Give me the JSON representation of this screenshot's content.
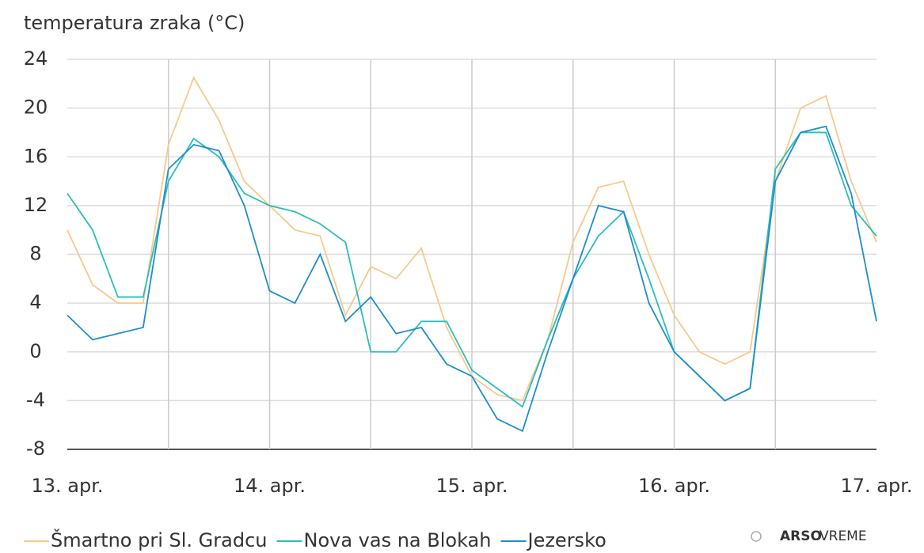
{
  "chart_data": {
    "type": "line",
    "title": "temperatura zraka (°C)",
    "categories": [
      "13. apr.",
      null,
      null,
      null,
      null,
      null,
      null,
      null,
      "14. apr.",
      null,
      null,
      null,
      null,
      null,
      null,
      null,
      "15. apr.",
      null,
      null,
      null,
      null,
      null,
      null,
      null,
      "16. apr.",
      null,
      null,
      null,
      null,
      null,
      null,
      null,
      "17. apr."
    ],
    "series": [
      {
        "name": "Šmartno pri Sl. Gradcu",
        "color": "#f7c98b",
        "values": [
          10,
          5.5,
          4,
          4,
          17,
          22.5,
          19,
          14,
          12,
          10,
          9.5,
          3,
          7,
          6,
          8.5,
          2,
          -2,
          -3.5,
          -4,
          1,
          9,
          13.5,
          14,
          8,
          3,
          0,
          -1,
          0,
          14,
          20,
          21,
          14,
          9
        ]
      },
      {
        "name": "Nova vas na Blokah",
        "color": "#2bbdbd",
        "values": [
          13,
          10,
          4.5,
          4.5,
          14,
          17.5,
          16,
          13,
          12,
          11.5,
          10.5,
          9,
          0,
          0,
          2.5,
          2.5,
          -1.5,
          -3,
          -4.5,
          1,
          6,
          9.5,
          11.5,
          6,
          0,
          -2,
          -4,
          -3,
          15,
          18,
          18,
          12,
          9.5
        ]
      },
      {
        "name": "Jezersko",
        "color": "#1f8ec9",
        "values": [
          3,
          1,
          1.5,
          2,
          15,
          17,
          16.5,
          12,
          5,
          4,
          8,
          2.5,
          4.5,
          1.5,
          2,
          -1,
          -2,
          -5.5,
          -6.5,
          0,
          6,
          12,
          11.5,
          4,
          0,
          -2,
          -4,
          -3,
          14,
          18,
          18.5,
          13,
          2.5
        ]
      }
    ],
    "ylim": [
      -8,
      24
    ],
    "yticks": [
      -8,
      -4,
      0,
      4,
      8,
      12,
      16,
      20,
      24
    ],
    "grid": true,
    "branding": {
      "bold": "ARSO",
      "rest": "VREME"
    }
  }
}
